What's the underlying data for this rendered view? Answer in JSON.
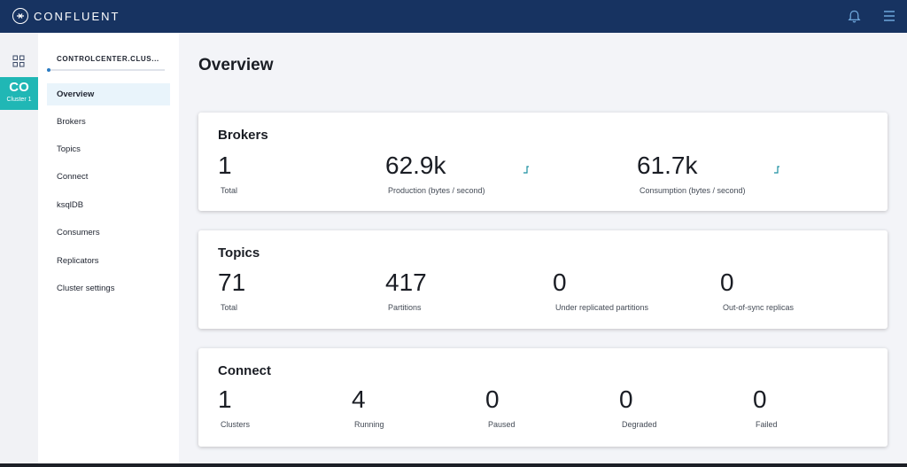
{
  "header": {
    "brand": "CONFLUENT"
  },
  "rail": {
    "cluster_code": "CO",
    "cluster_sub": "Cluster 1"
  },
  "sidebar": {
    "cluster_name": "CONTROLCENTER.CLUS...",
    "items": [
      {
        "label": "Overview",
        "active": true
      },
      {
        "label": "Brokers"
      },
      {
        "label": "Topics"
      },
      {
        "label": "Connect"
      },
      {
        "label": "ksqlDB"
      },
      {
        "label": "Consumers"
      },
      {
        "label": "Replicators"
      },
      {
        "label": "Cluster settings"
      }
    ]
  },
  "main": {
    "title": "Overview",
    "brokers": {
      "title": "Brokers",
      "stats": [
        {
          "value": "1",
          "label": "Total"
        },
        {
          "value": "62.9k",
          "label": "Production (bytes / second)"
        },
        {
          "value": "61.7k",
          "label": "Consumption (bytes / second)"
        }
      ]
    },
    "topics": {
      "title": "Topics",
      "stats": [
        {
          "value": "71",
          "label": "Total"
        },
        {
          "value": "417",
          "label": "Partitions"
        },
        {
          "value": "0",
          "label": "Under replicated partitions"
        },
        {
          "value": "0",
          "label": "Out-of-sync replicas"
        }
      ]
    },
    "connect": {
      "title": "Connect",
      "stats": [
        {
          "value": "1",
          "label": "Clusters"
        },
        {
          "value": "4",
          "label": "Running"
        },
        {
          "value": "0",
          "label": "Paused"
        },
        {
          "value": "0",
          "label": "Degraded"
        },
        {
          "value": "0",
          "label": "Failed"
        }
      ]
    }
  },
  "colors": {
    "topbar": "#173361",
    "accent": "#20b7b5",
    "sparkline": "#1a8fa0",
    "nav_active_bg": "#e9f4fb"
  },
  "icons": {
    "logo": "confluent-logo-icon",
    "notifications": "bell-icon",
    "menu": "hamburger-menu-icon",
    "rail": "grid-icon",
    "sparkline": "sparkline-icon"
  }
}
